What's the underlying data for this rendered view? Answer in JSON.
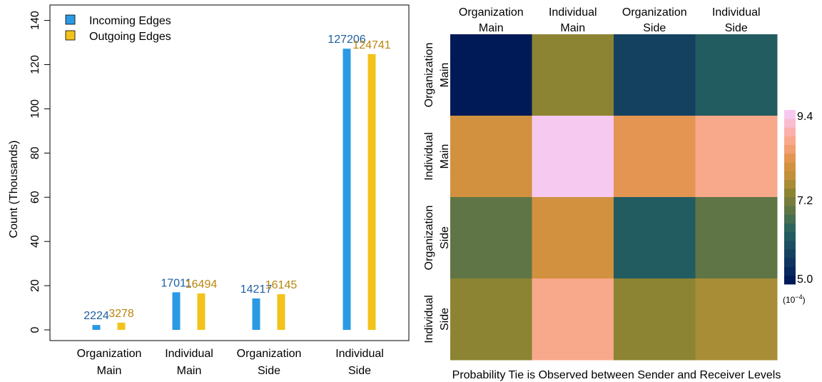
{
  "chart_data": [
    {
      "type": "bar",
      "ylabel": "Count (Thousands)",
      "ylim": [
        0,
        140
      ],
      "yticks": [
        0,
        20,
        40,
        60,
        80,
        100,
        120,
        140
      ],
      "grid": false,
      "legend_position": "top-left",
      "categories": [
        [
          "Organization",
          "Main"
        ],
        [
          "Individual",
          "Main"
        ],
        [
          "Organization",
          "Side"
        ],
        [
          "Individual",
          "Side"
        ]
      ],
      "series": [
        {
          "name": "Incoming Edges",
          "color": "#2b9ae4",
          "label_color": "#1f5fa0",
          "values": [
            2224,
            17011,
            14217,
            127206
          ]
        },
        {
          "name": "Outgoing Edges",
          "color": "#f2c31b",
          "label_color": "#b8860b",
          "values": [
            3278,
            16494,
            16145,
            124741
          ]
        }
      ]
    },
    {
      "type": "heatmap",
      "xlabel": "Probability Tie is Observed between Sender and Receiver Levels",
      "col_labels": [
        [
          "Organization",
          "Main"
        ],
        [
          "Individual",
          "Main"
        ],
        [
          "Organization",
          "Side"
        ],
        [
          "Individual",
          "Side"
        ]
      ],
      "row_labels": [
        [
          "Organization",
          "Main"
        ],
        [
          "Individual",
          "Main"
        ],
        [
          "Organization",
          "Side"
        ],
        [
          "Individual",
          "Side"
        ]
      ],
      "values": [
        [
          5.0,
          7.4,
          5.6,
          6.1
        ],
        [
          8.0,
          9.4,
          8.3,
          8.8
        ],
        [
          6.9,
          7.9,
          6.2,
          6.9
        ],
        [
          7.4,
          8.6,
          7.4,
          7.6
        ]
      ],
      "colorbar": {
        "min": 5.0,
        "max": 9.4,
        "tick_values": [
          9.4,
          7.2,
          5.0
        ],
        "tick_labels": [
          "9.4",
          "7.2",
          "5.0"
        ],
        "unit": "(10",
        "unit_exp": "−4",
        "colors": [
          "#001a57",
          "#08275c",
          "#0f3460",
          "#154161",
          "#1b4e61",
          "#225b60",
          "#2d655c",
          "#476d52",
          "#5f7546",
          "#777c3c",
          "#8c8432",
          "#a98c36",
          "#c28f3a",
          "#d1913f",
          "#e49551",
          "#f19e70",
          "#f8a88b",
          "#fab0ab",
          "#f9bdd0",
          "#f6c9f0"
        ]
      }
    }
  ]
}
